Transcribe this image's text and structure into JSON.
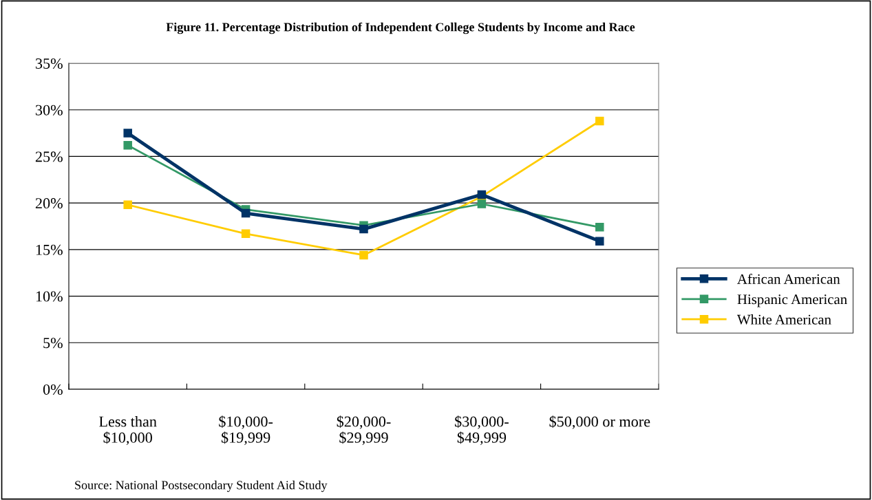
{
  "chart_data": {
    "type": "line",
    "title": "Figure 11. Percentage Distribution of Independent College Students by Income and Race",
    "categories": [
      "Less than\n$10,000",
      "$10,000-\n$19,999",
      "$20,000-\n$29,999",
      "$30,000-\n$49,999",
      "$50,000 or more"
    ],
    "series": [
      {
        "name": "African American",
        "color": "#003366",
        "values": [
          27.5,
          18.9,
          17.2,
          20.9,
          15.9
        ]
      },
      {
        "name": "Hispanic American",
        "color": "#339966",
        "values": [
          26.2,
          19.3,
          17.6,
          19.9,
          17.4
        ]
      },
      {
        "name": "White American",
        "color": "#ffcc00",
        "values": [
          19.8,
          16.7,
          14.4,
          20.7,
          28.8
        ]
      }
    ],
    "ylim": [
      0,
      35
    ],
    "yticks": [
      {
        "value": 0,
        "label": "0%"
      },
      {
        "value": 5,
        "label": "5%"
      },
      {
        "value": 10,
        "label": "10%"
      },
      {
        "value": 15,
        "label": "15%"
      },
      {
        "value": 20,
        "label": "20%"
      },
      {
        "value": 25,
        "label": "25%"
      },
      {
        "value": 30,
        "label": "30%"
      },
      {
        "value": 35,
        "label": "35%"
      }
    ],
    "grid": "y",
    "legend": "right",
    "marker": "square",
    "line_style": "solid",
    "annotations": [
      "Source: National Postsecondary Student Aid Study"
    ]
  }
}
